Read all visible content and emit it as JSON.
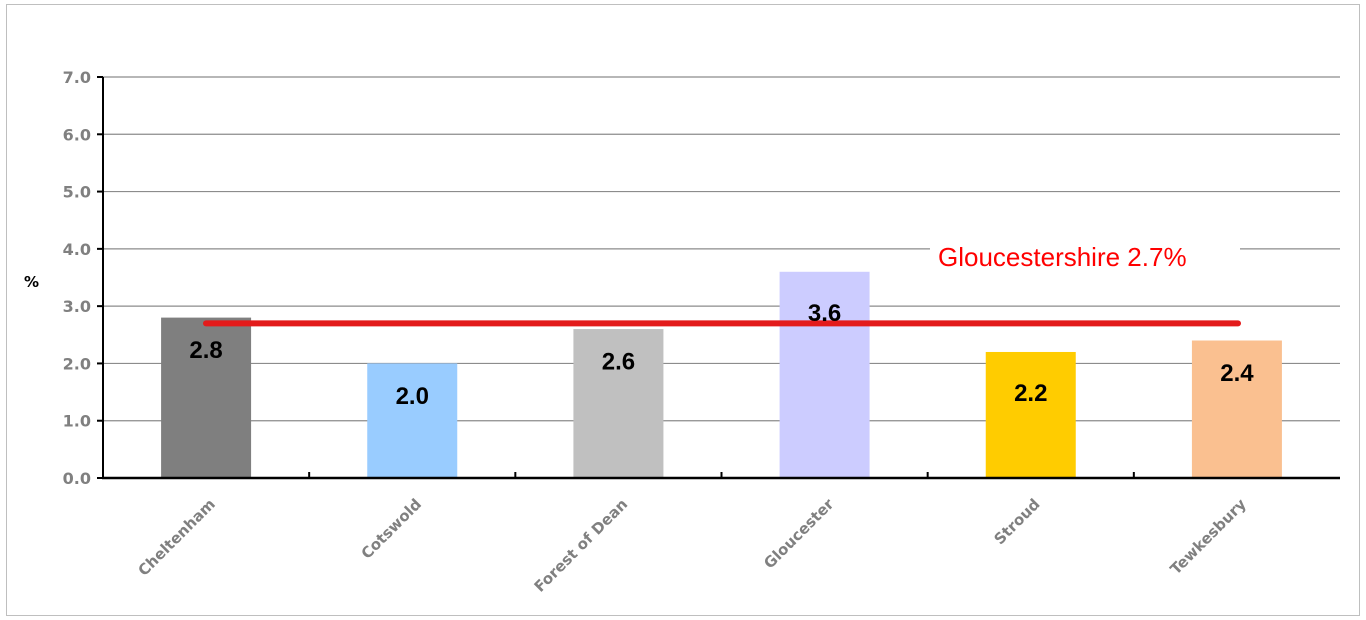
{
  "chart_data": {
    "type": "bar",
    "categories": [
      "Cheltenham",
      "Cotswold",
      "Forest of Dean",
      "Gloucester",
      "Stroud",
      "Tewkesbury"
    ],
    "values": [
      2.8,
      2.0,
      2.6,
      3.6,
      2.2,
      2.4
    ],
    "data_labels": [
      "2.8",
      "2.0",
      "2.6",
      "3.6",
      "2.2",
      "2.4"
    ],
    "colors": [
      "#7f7f7f",
      "#99ccff",
      "#c0c0c0",
      "#ccccff",
      "#ffcc00",
      "#fac090"
    ],
    "ylabel": "%",
    "ylim": [
      0,
      7
    ],
    "yticks": [
      0,
      1,
      2,
      3,
      4,
      5,
      6,
      7
    ],
    "ytick_labels": [
      "0.0",
      "1.0",
      "2.0",
      "3.0",
      "4.0",
      "5.0",
      "6.0",
      "7.0"
    ],
    "grid": true,
    "reference_line": {
      "label": "Gloucestershire 2.7%",
      "value": 2.7,
      "color": "#e31b1b"
    }
  }
}
